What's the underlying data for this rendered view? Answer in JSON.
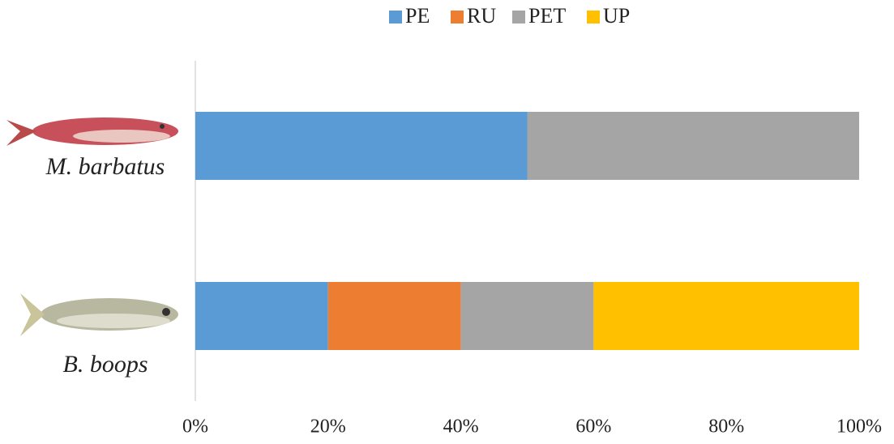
{
  "chart_data": {
    "type": "stacked-barh",
    "categories": [
      "M. barbatus",
      "B. boops"
    ],
    "series": [
      {
        "name": "PE",
        "color": "#5b9bd5",
        "values": [
          50,
          20
        ]
      },
      {
        "name": "RU",
        "color": "#ed7d31",
        "values": [
          0,
          20
        ]
      },
      {
        "name": "PET",
        "color": "#a5a5a5",
        "values": [
          50,
          20
        ]
      },
      {
        "name": "UP",
        "color": "#ffc000",
        "values": [
          0,
          40
        ]
      }
    ],
    "xlim": [
      0,
      100
    ],
    "xticks": [
      {
        "value": 0,
        "label": "0%"
      },
      {
        "value": 20,
        "label": "20%"
      },
      {
        "value": 40,
        "label": "40%"
      },
      {
        "value": 60,
        "label": "60%"
      },
      {
        "value": 80,
        "label": "80%"
      },
      {
        "value": 100,
        "label": "100%"
      }
    ],
    "legend": "top"
  }
}
